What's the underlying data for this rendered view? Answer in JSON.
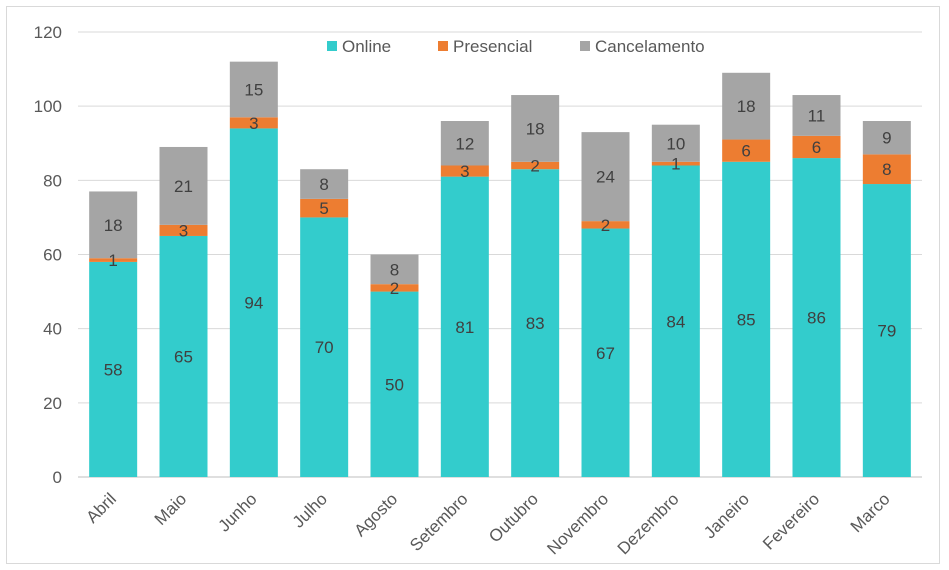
{
  "chart_data": {
    "type": "bar",
    "stacked": true,
    "title": "",
    "xlabel": "",
    "ylabel": "",
    "ylim": [
      0,
      120
    ],
    "yticks": [
      0,
      20,
      40,
      60,
      80,
      100,
      120
    ],
    "grid": true,
    "legend_position": "top",
    "categories": [
      "Abril",
      "Maio",
      "Junho",
      "Julho",
      "Agosto",
      "Setembro",
      "Outubro",
      "Novembro",
      "Dezembro",
      "Janeiro",
      "Fevereiro",
      "Marco"
    ],
    "series": [
      {
        "name": "Online",
        "color": "#33cccc",
        "values": [
          58,
          65,
          94,
          70,
          50,
          81,
          83,
          67,
          84,
          85,
          86,
          79
        ]
      },
      {
        "name": "Presencial",
        "color": "#ed7d31",
        "values": [
          1,
          3,
          3,
          5,
          2,
          3,
          2,
          2,
          1,
          6,
          6,
          8
        ]
      },
      {
        "name": "Cancelamento",
        "color": "#a5a5a5",
        "values": [
          18,
          21,
          15,
          8,
          8,
          12,
          18,
          24,
          10,
          18,
          11,
          9
        ]
      }
    ]
  }
}
